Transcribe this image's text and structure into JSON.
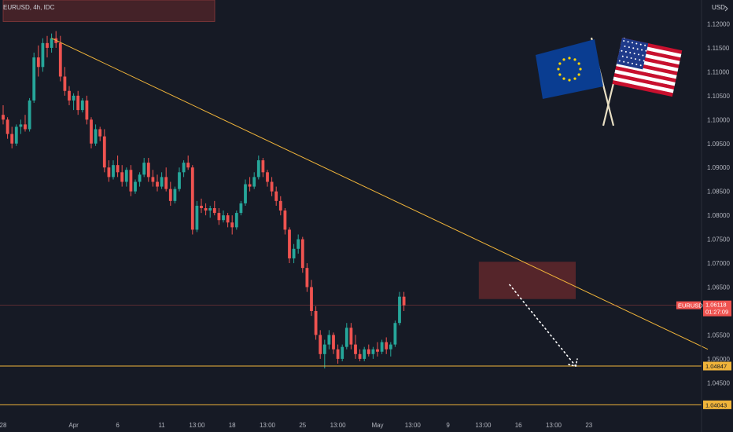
{
  "header": {
    "symbol": "EURUSD, 4h, IDC",
    "currency": "USD"
  },
  "colors": {
    "up": "#26a69a",
    "down": "#ef5350",
    "trendline": "#f0b43a",
    "support": "#f0b43a",
    "zone": "#6b2a2c",
    "current": "#ef5350"
  },
  "icons": [
    "flag-eu-icon",
    "flag-us-icon",
    "settings-icon"
  ],
  "chart_data": {
    "type": "candlestick",
    "symbol": "EURUSD",
    "timeframe": "4h",
    "ylim": [
      1.038,
      1.125
    ],
    "y_ticks": [
      "1.12000",
      "1.11500",
      "1.11000",
      "1.10500",
      "1.10000",
      "1.09500",
      "1.09000",
      "1.08500",
      "1.08000",
      "1.07500",
      "1.07000",
      "1.06500",
      "1.06000",
      "1.05500",
      "1.05000",
      "1.04500"
    ],
    "y_tick_values": [
      1.12,
      1.115,
      1.11,
      1.105,
      1.1,
      1.095,
      1.09,
      1.085,
      1.08,
      1.075,
      1.07,
      1.065,
      1.06,
      1.055,
      1.05,
      1.045
    ],
    "x_ticks": [
      "28",
      "Apr",
      "6",
      "11",
      "13:00",
      "18",
      "13:00",
      "25",
      "13:00",
      "May",
      "13:00",
      "9",
      "13:00",
      "16",
      "13:00",
      "23"
    ],
    "x_tick_index": [
      0,
      16,
      26,
      36,
      44,
      52,
      60,
      68,
      76,
      85,
      93,
      101,
      109,
      117,
      125,
      133
    ],
    "ohlc": [
      [
        1.101,
        1.103,
        1.099,
        1.1
      ],
      [
        1.1,
        1.1005,
        1.096,
        1.097
      ],
      [
        1.097,
        1.0985,
        1.094,
        1.095
      ],
      [
        1.095,
        1.099,
        1.0945,
        1.0985
      ],
      [
        1.0985,
        1.1,
        1.097,
        1.099
      ],
      [
        1.099,
        1.101,
        1.0975,
        1.098
      ],
      [
        1.098,
        1.1045,
        1.0975,
        1.104
      ],
      [
        1.104,
        1.114,
        1.1035,
        1.113
      ],
      [
        1.113,
        1.1155,
        1.109,
        1.111
      ],
      [
        1.111,
        1.117,
        1.11,
        1.116
      ],
      [
        1.116,
        1.1175,
        1.113,
        1.115
      ],
      [
        1.115,
        1.118,
        1.114,
        1.117
      ],
      [
        1.117,
        1.1185,
        1.115,
        1.116
      ],
      [
        1.116,
        1.1175,
        1.108,
        1.109
      ],
      [
        1.109,
        1.111,
        1.105,
        1.106
      ],
      [
        1.106,
        1.107,
        1.103,
        1.104
      ],
      [
        1.104,
        1.1055,
        1.102,
        1.105
      ],
      [
        1.105,
        1.106,
        1.101,
        1.102
      ],
      [
        1.102,
        1.1045,
        1.1015,
        1.104
      ],
      [
        1.104,
        1.105,
        1.099,
        1.1
      ],
      [
        1.1,
        1.1005,
        1.094,
        1.095
      ],
      [
        1.095,
        1.099,
        1.0945,
        1.098
      ],
      [
        1.098,
        1.0985,
        1.0955,
        1.0965
      ],
      [
        1.0965,
        1.098,
        1.089,
        1.09
      ],
      [
        1.09,
        1.0915,
        1.087,
        1.088
      ],
      [
        1.088,
        1.0915,
        1.0875,
        1.0905
      ],
      [
        1.0905,
        1.0925,
        1.088,
        1.089
      ],
      [
        1.089,
        1.0905,
        1.086,
        1.087
      ],
      [
        1.087,
        1.09,
        1.086,
        1.0895
      ],
      [
        1.0895,
        1.0905,
        1.084,
        1.085
      ],
      [
        1.085,
        1.0875,
        1.0845,
        1.087
      ],
      [
        1.087,
        1.089,
        1.086,
        1.0885
      ],
      [
        1.0885,
        1.092,
        1.088,
        1.091
      ],
      [
        1.091,
        1.092,
        1.087,
        1.088
      ],
      [
        1.088,
        1.0895,
        1.086,
        1.087
      ],
      [
        1.087,
        1.0885,
        1.085,
        1.086
      ],
      [
        1.086,
        1.089,
        1.0855,
        1.088
      ],
      [
        1.088,
        1.09,
        1.085,
        1.0855
      ],
      [
        1.0855,
        1.087,
        1.082,
        1.083
      ],
      [
        1.083,
        1.086,
        1.0825,
        1.0855
      ],
      [
        1.0855,
        1.09,
        1.085,
        1.089
      ],
      [
        1.089,
        1.0915,
        1.088,
        1.091
      ],
      [
        1.091,
        1.0925,
        1.0895,
        1.09
      ],
      [
        1.09,
        1.0905,
        1.076,
        1.077
      ],
      [
        1.077,
        1.083,
        1.0765,
        1.082
      ],
      [
        1.082,
        1.0835,
        1.0805,
        1.0815
      ],
      [
        1.0815,
        1.0825,
        1.08,
        1.081
      ],
      [
        1.081,
        1.082,
        1.0795,
        1.0815
      ],
      [
        1.0815,
        1.083,
        1.08,
        1.0805
      ],
      [
        1.0805,
        1.0815,
        1.078,
        1.079
      ],
      [
        1.079,
        1.081,
        1.0785,
        1.08
      ],
      [
        1.08,
        1.0805,
        1.0775,
        1.0785
      ],
      [
        1.0785,
        1.08,
        1.076,
        1.0775
      ],
      [
        1.0775,
        1.081,
        1.077,
        1.0805
      ],
      [
        1.0805,
        1.083,
        1.08,
        1.0825
      ],
      [
        1.0825,
        1.0875,
        1.082,
        1.0865
      ],
      [
        1.0865,
        1.088,
        1.085,
        1.086
      ],
      [
        1.086,
        1.089,
        1.0855,
        1.088
      ],
      [
        1.088,
        1.0925,
        1.0875,
        1.0915
      ],
      [
        1.0915,
        1.092,
        1.088,
        1.089
      ],
      [
        1.089,
        1.0895,
        1.086,
        1.087
      ],
      [
        1.087,
        1.088,
        1.084,
        1.085
      ],
      [
        1.085,
        1.086,
        1.082,
        1.083
      ],
      [
        1.083,
        1.084,
        1.08,
        1.081
      ],
      [
        1.081,
        1.0815,
        1.076,
        1.077
      ],
      [
        1.077,
        1.0775,
        1.07,
        1.071
      ],
      [
        1.071,
        1.074,
        1.07,
        1.073
      ],
      [
        1.073,
        1.076,
        1.072,
        1.075
      ],
      [
        1.075,
        1.0755,
        1.068,
        1.069
      ],
      [
        1.069,
        1.07,
        1.064,
        1.065
      ],
      [
        1.065,
        1.0665,
        1.059,
        1.06
      ],
      [
        1.06,
        1.061,
        1.054,
        1.055
      ],
      [
        1.055,
        1.056,
        1.05,
        1.051
      ],
      [
        1.051,
        1.054,
        1.048,
        1.053
      ],
      [
        1.053,
        1.056,
        1.052,
        1.055
      ],
      [
        1.055,
        1.0555,
        1.051,
        1.052
      ],
      [
        1.052,
        1.053,
        1.049,
        1.05
      ],
      [
        1.05,
        1.053,
        1.0495,
        1.0525
      ],
      [
        1.0525,
        1.0575,
        1.052,
        1.0565
      ],
      [
        1.0565,
        1.0575,
        1.052,
        1.053
      ],
      [
        1.053,
        1.055,
        1.05,
        1.051
      ],
      [
        1.051,
        1.052,
        1.0495,
        1.05
      ],
      [
        1.05,
        1.0525,
        1.0495,
        1.052
      ],
      [
        1.052,
        1.053,
        1.0505,
        1.051
      ],
      [
        1.051,
        1.0525,
        1.05,
        1.052
      ],
      [
        1.052,
        1.0535,
        1.0505,
        1.0515
      ],
      [
        1.0515,
        1.054,
        1.051,
        1.0535
      ],
      [
        1.0535,
        1.0545,
        1.051,
        1.052
      ],
      [
        1.052,
        1.0535,
        1.0505,
        1.053
      ],
      [
        1.053,
        1.058,
        1.0525,
        1.0575
      ],
      [
        1.0575,
        1.064,
        1.057,
        1.063
      ],
      [
        1.063,
        1.064,
        1.06,
        1.0612
      ]
    ],
    "trendline": {
      "start_index": 11,
      "start_price": 1.117,
      "end_index": 160,
      "end_price": 1.052
    },
    "supply_zone": {
      "start_index": 108,
      "end_index": 130,
      "top": 1.0703,
      "bottom": 1.0625
    },
    "top_zone": {
      "start_index": 0,
      "end_index": 50,
      "top": 1.1265,
      "bottom": 1.1205
    },
    "projection": {
      "start_index": 115,
      "start_price": 1.0655,
      "end_index": 130,
      "end_price": 1.0485
    },
    "support_levels": [
      {
        "price": 1.0485,
        "label": "1.04847"
      },
      {
        "price": 1.0404,
        "label": "1.04043"
      }
    ],
    "current": {
      "price": 1.0612,
      "label": "EURUSD",
      "value": "1.06118",
      "countdown": "01:27:09"
    }
  }
}
